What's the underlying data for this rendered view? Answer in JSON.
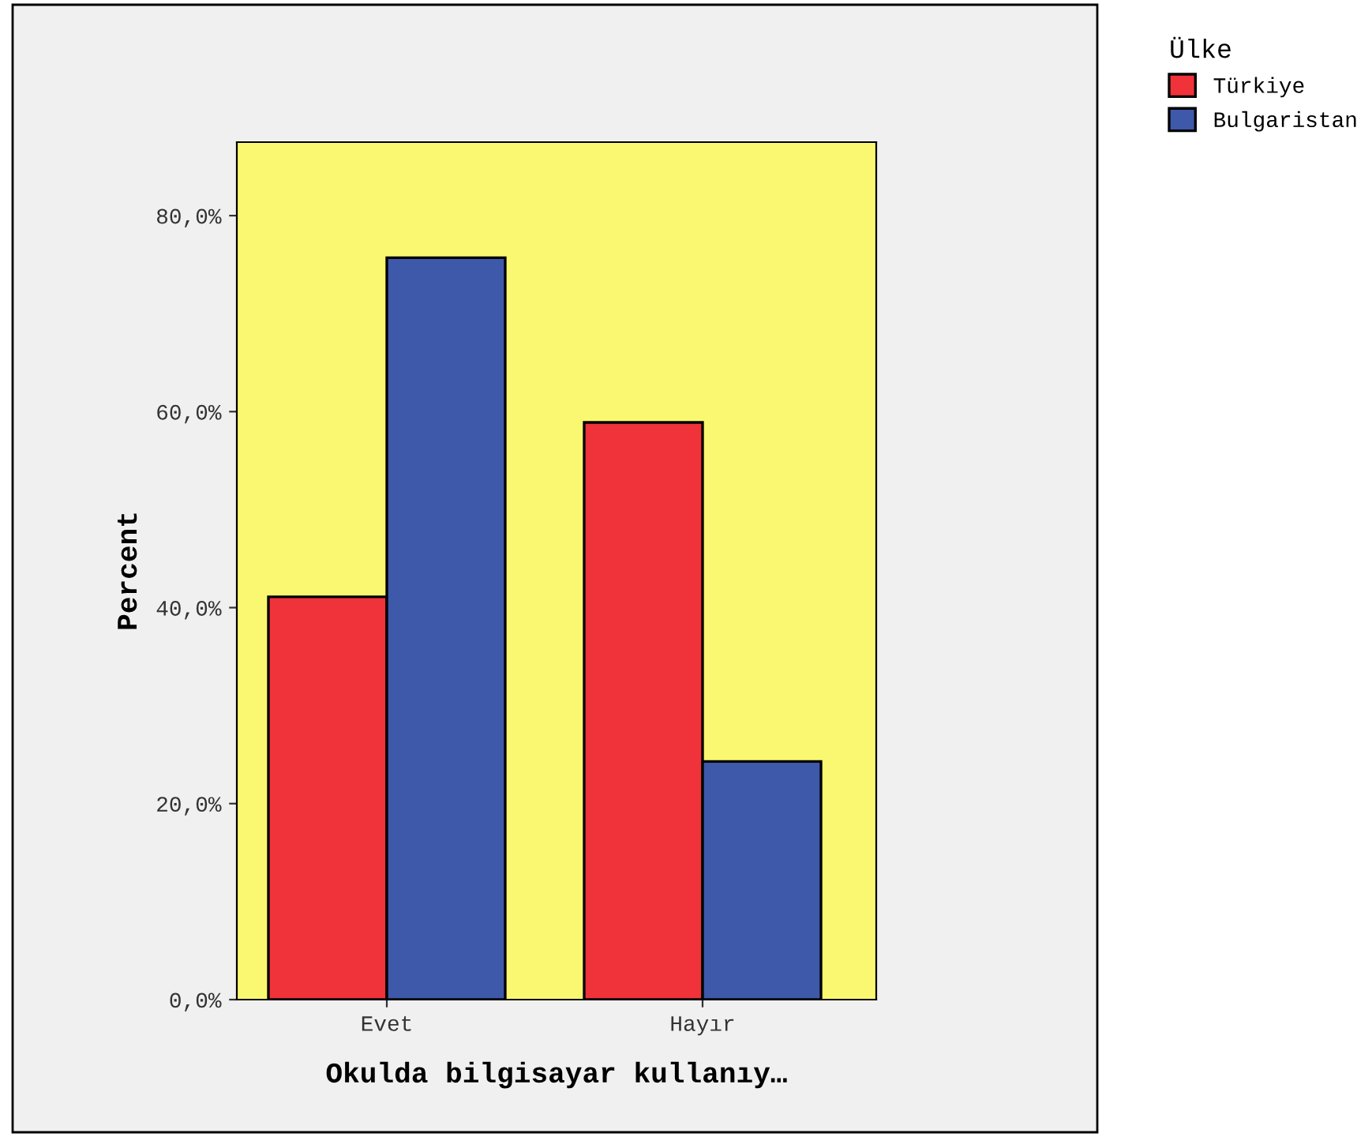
{
  "chart_data": {
    "type": "bar",
    "xlabel": "Okulda bilgisayar kullanıy…",
    "ylabel": "Percent",
    "legend_title": "Ülke",
    "categories": [
      "Evet",
      "Hayır"
    ],
    "series": [
      {
        "name": "Türkiye",
        "color": "#f0323a",
        "values": [
          41.1,
          58.9
        ]
      },
      {
        "name": "Bulgaristan",
        "color": "#3e58aa",
        "values": [
          75.7,
          24.3
        ]
      }
    ],
    "ylim": [
      0,
      87.5
    ],
    "yticks": [
      {
        "value": 0,
        "label": "0,0%"
      },
      {
        "value": 20,
        "label": "20,0%"
      },
      {
        "value": 40,
        "label": "40,0%"
      },
      {
        "value": 60,
        "label": "60,0%"
      },
      {
        "value": 80,
        "label": "80,0%"
      }
    ],
    "grid": false,
    "legend": "top right"
  }
}
